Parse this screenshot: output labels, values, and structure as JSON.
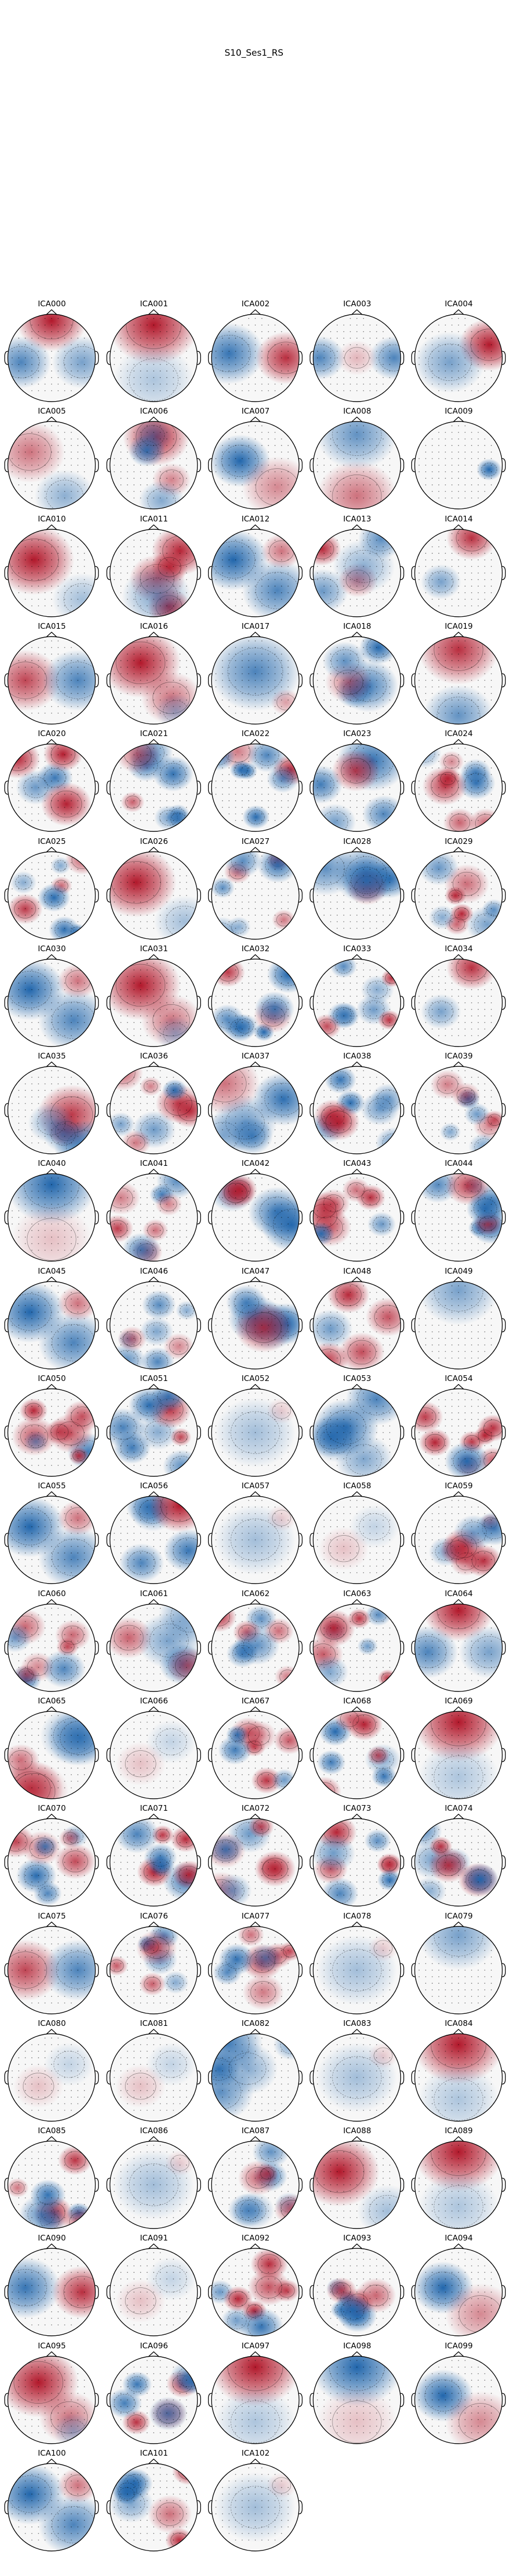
{
  "title": "S10_Ses1_RS",
  "chart_data": {
    "type": "topomap-grid",
    "title": "S10_Ses1_RS",
    "colormap": "RdBu_r",
    "colors": {
      "positive": "#b2182b",
      "negative": "#2166ac",
      "neutral": "#f7f7f7",
      "outline": "#000000"
    },
    "n_components": 103,
    "columns": 5,
    "panels": [
      {
        "label": "ICA000",
        "pattern": "front-pos-center-neg"
      },
      {
        "label": "ICA001",
        "pattern": "front-pos"
      },
      {
        "label": "ICA002",
        "pattern": "left-neg-right-pos"
      },
      {
        "label": "ICA003",
        "pattern": "sides-neg-center"
      },
      {
        "label": "ICA004",
        "pattern": "right-pos-center-neg"
      },
      {
        "label": "ICA005",
        "pattern": "left-pos-blue-back"
      },
      {
        "label": "ICA006",
        "pattern": "mixed-pos"
      },
      {
        "label": "ICA007",
        "pattern": "left-neg-strong"
      },
      {
        "label": "ICA008",
        "pattern": "back-pos-front-neg"
      },
      {
        "label": "ICA009",
        "pattern": "right-focal-neg"
      },
      {
        "label": "ICA010",
        "pattern": "left-pos-strong"
      },
      {
        "label": "ICA011",
        "pattern": "mixed-red"
      },
      {
        "label": "ICA012",
        "pattern": "blue-dominant"
      },
      {
        "label": "ICA013",
        "pattern": "mixed"
      },
      {
        "label": "ICA014",
        "pattern": "front-pos-mixed"
      },
      {
        "label": "ICA015",
        "pattern": "left-pos-right-neg"
      },
      {
        "label": "ICA016",
        "pattern": "red-dominant"
      },
      {
        "label": "ICA017",
        "pattern": "neg-dominant"
      },
      {
        "label": "ICA018",
        "pattern": "mixed-blue"
      },
      {
        "label": "ICA019",
        "pattern": "front-pos-back-neg"
      },
      {
        "label": "ICA020",
        "pattern": "mixed"
      },
      {
        "label": "ICA021",
        "pattern": "mixed-spots"
      },
      {
        "label": "ICA022",
        "pattern": "mixed-spots"
      },
      {
        "label": "ICA023",
        "pattern": "mixed-blue"
      },
      {
        "label": "ICA024",
        "pattern": "mixed-spots"
      },
      {
        "label": "ICA025",
        "pattern": "mixed-spots"
      },
      {
        "label": "ICA026",
        "pattern": "left-pos-strong"
      },
      {
        "label": "ICA027",
        "pattern": "mixed-spots"
      },
      {
        "label": "ICA028",
        "pattern": "mixed-blue"
      },
      {
        "label": "ICA029",
        "pattern": "mixed-spots"
      },
      {
        "label": "ICA030",
        "pattern": "blue-dominant"
      },
      {
        "label": "ICA031",
        "pattern": "red-dominant"
      },
      {
        "label": "ICA032",
        "pattern": "mixed-spots"
      },
      {
        "label": "ICA033",
        "pattern": "mixed-spots"
      },
      {
        "label": "ICA034",
        "pattern": "front-pos-mixed"
      },
      {
        "label": "ICA035",
        "pattern": "mixed"
      },
      {
        "label": "ICA036",
        "pattern": "mixed-spots"
      },
      {
        "label": "ICA037",
        "pattern": "mixed-blue"
      },
      {
        "label": "ICA038",
        "pattern": "mixed-spots"
      },
      {
        "label": "ICA039",
        "pattern": "mixed-spots"
      },
      {
        "label": "ICA040",
        "pattern": "front-neg"
      },
      {
        "label": "ICA041",
        "pattern": "mixed-spots"
      },
      {
        "label": "ICA042",
        "pattern": "mixed-blue"
      },
      {
        "label": "ICA043",
        "pattern": "mixed-spots"
      },
      {
        "label": "ICA044",
        "pattern": "mixed-spots"
      },
      {
        "label": "ICA045",
        "pattern": "blue-dominant"
      },
      {
        "label": "ICA046",
        "pattern": "mixed-spots"
      },
      {
        "label": "ICA047",
        "pattern": "mixed-blue"
      },
      {
        "label": "ICA048",
        "pattern": "mixed"
      },
      {
        "label": "ICA049",
        "pattern": "front-neg-faint"
      },
      {
        "label": "ICA050",
        "pattern": "mixed-spots"
      },
      {
        "label": "ICA051",
        "pattern": "mixed-spots"
      },
      {
        "label": "ICA052",
        "pattern": "faint-blue"
      },
      {
        "label": "ICA053",
        "pattern": "mixed-blue"
      },
      {
        "label": "ICA054",
        "pattern": "mixed-spots"
      },
      {
        "label": "ICA055",
        "pattern": "blue-dominant"
      },
      {
        "label": "ICA056",
        "pattern": "mixed-blue"
      },
      {
        "label": "ICA057",
        "pattern": "faint-blue"
      },
      {
        "label": "ICA058",
        "pattern": "faint"
      },
      {
        "label": "ICA059",
        "pattern": "mixed-spots"
      },
      {
        "label": "ICA060",
        "pattern": "mixed-spots"
      },
      {
        "label": "ICA061",
        "pattern": "mixed-blue"
      },
      {
        "label": "ICA062",
        "pattern": "mixed-spots"
      },
      {
        "label": "ICA063",
        "pattern": "mixed-spots"
      },
      {
        "label": "ICA064",
        "pattern": "front-pos-center-neg"
      },
      {
        "label": "ICA065",
        "pattern": "mixed"
      },
      {
        "label": "ICA066",
        "pattern": "faint"
      },
      {
        "label": "ICA067",
        "pattern": "mixed-spots"
      },
      {
        "label": "ICA068",
        "pattern": "mixed-spots"
      },
      {
        "label": "ICA069",
        "pattern": "front-pos"
      },
      {
        "label": "ICA070",
        "pattern": "mixed-spots"
      },
      {
        "label": "ICA071",
        "pattern": "mixed-spots"
      },
      {
        "label": "ICA072",
        "pattern": "mixed-spots"
      },
      {
        "label": "ICA073",
        "pattern": "mixed-spots"
      },
      {
        "label": "ICA074",
        "pattern": "mixed-spots"
      },
      {
        "label": "ICA075",
        "pattern": "left-pos-right-neg"
      },
      {
        "label": "ICA076",
        "pattern": "mixed-spots"
      },
      {
        "label": "ICA077",
        "pattern": "mixed-spots"
      },
      {
        "label": "ICA078",
        "pattern": "faint-blue"
      },
      {
        "label": "ICA079",
        "pattern": "front-neg-faint"
      },
      {
        "label": "ICA080",
        "pattern": "faint"
      },
      {
        "label": "ICA081",
        "pattern": "faint"
      },
      {
        "label": "ICA082",
        "pattern": "mixed-blue"
      },
      {
        "label": "ICA083",
        "pattern": "faint-blue"
      },
      {
        "label": "ICA084",
        "pattern": "front-pos"
      },
      {
        "label": "ICA085",
        "pattern": "mixed-spots"
      },
      {
        "label": "ICA086",
        "pattern": "faint-blue"
      },
      {
        "label": "ICA087",
        "pattern": "mixed-spots"
      },
      {
        "label": "ICA088",
        "pattern": "left-pos-strong"
      },
      {
        "label": "ICA089",
        "pattern": "front-pos"
      },
      {
        "label": "ICA090",
        "pattern": "left-neg-right-pos"
      },
      {
        "label": "ICA091",
        "pattern": "faint"
      },
      {
        "label": "ICA092",
        "pattern": "mixed-spots"
      },
      {
        "label": "ICA093",
        "pattern": "mixed-spots"
      },
      {
        "label": "ICA094",
        "pattern": "left-neg-strong"
      },
      {
        "label": "ICA095",
        "pattern": "red-dominant"
      },
      {
        "label": "ICA096",
        "pattern": "mixed-spots"
      },
      {
        "label": "ICA097",
        "pattern": "front-pos"
      },
      {
        "label": "ICA098",
        "pattern": "front-neg"
      },
      {
        "label": "ICA099",
        "pattern": "left-neg-strong"
      },
      {
        "label": "ICA100",
        "pattern": "blue-dominant"
      },
      {
        "label": "ICA101",
        "pattern": "mixed-spots"
      },
      {
        "label": "ICA102",
        "pattern": "faint-blue"
      }
    ]
  }
}
